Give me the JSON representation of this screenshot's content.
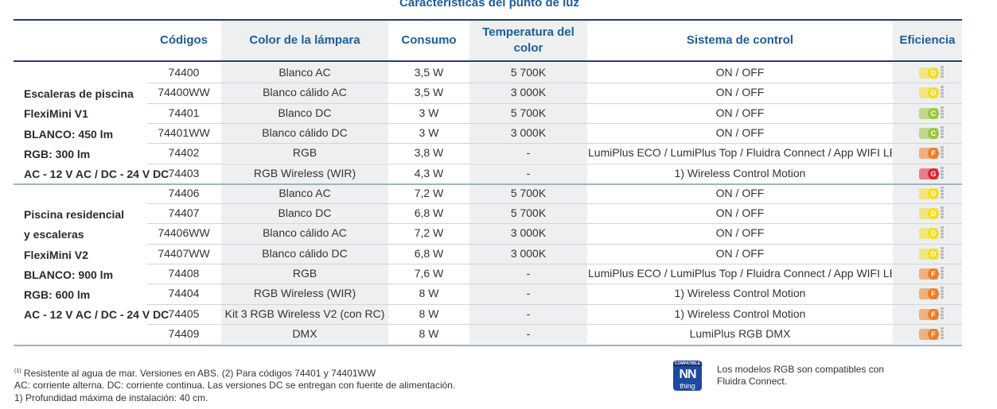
{
  "title": "Características del punto de luz",
  "headers": {
    "codes": "Códigos",
    "color": "Color de la lámpara",
    "consumption": "Consumo",
    "temperature": "Temperatura del color",
    "control": "Sistema de control",
    "efficiency": "Eficiencia"
  },
  "groups": [
    {
      "lines": [
        "Escaleras de piscina",
        "FlexiMini V1",
        "BLANCO: 450 lm",
        "RGB: 300 lm",
        "AC - 12 V AC / DC - 24 V DC"
      ]
    },
    {
      "lines": [
        "Piscina residencial",
        "y escaleras",
        "FlexiMini V2",
        "BLANCO: 900 lm",
        "RGB: 600 lm",
        "AC - 12 V AC / DC - 24 V DC"
      ]
    }
  ],
  "rows": [
    {
      "code": "74400",
      "color": "Blanco AC",
      "consumption": "3,5 W",
      "temperature": "5 700K",
      "control": "ON / OFF",
      "efficiency": "D"
    },
    {
      "code": "74400WW",
      "color": "Blanco cálido AC",
      "consumption": "3,5 W",
      "temperature": "3 000K",
      "control": "ON / OFF",
      "efficiency": "D"
    },
    {
      "code": "74401",
      "color": "Blanco DC",
      "consumption": "3 W",
      "temperature": "5 700K",
      "control": "ON / OFF",
      "efficiency": "C"
    },
    {
      "code": "74401WW",
      "color": "Blanco cálido DC",
      "consumption": "3 W",
      "temperature": "3 000K",
      "control": "ON / OFF",
      "efficiency": "C"
    },
    {
      "code": "74402",
      "color": "RGB",
      "consumption": "3,8 W",
      "temperature": "-",
      "control": "LumiPlus ECO / LumiPlus Top / Fluidra Connect / App WIFI LED",
      "efficiency": "F"
    },
    {
      "code": "74403",
      "color": "RGB Wireless (WIR)",
      "consumption": "4,3 W",
      "temperature": "-",
      "control": "1) Wireless Control Motion",
      "efficiency": "G"
    },
    {
      "code": "74406",
      "color": "Blanco AC",
      "consumption": "7,2 W",
      "temperature": "5 700K",
      "control": "ON / OFF",
      "efficiency": "D"
    },
    {
      "code": "74407",
      "color": "Blanco DC",
      "consumption": "6,8 W",
      "temperature": "5 700K",
      "control": "ON / OFF",
      "efficiency": "D"
    },
    {
      "code": "74406WW",
      "color": "Blanco cálido AC",
      "consumption": "7,2 W",
      "temperature": "3 000K",
      "control": "ON / OFF",
      "efficiency": "D"
    },
    {
      "code": "74407WW",
      "color": "Blanco cálido DC",
      "consumption": "6,8 W",
      "temperature": "3 000K",
      "control": "ON / OFF",
      "efficiency": "D"
    },
    {
      "code": "74408",
      "color": "RGB",
      "consumption": "7,6 W",
      "temperature": "-",
      "control": "LumiPlus ECO / LumiPlus Top / Fluidra Connect / App WIFI LED",
      "efficiency": "F"
    },
    {
      "code": "74404",
      "color": "RGB Wireless (WIR)",
      "consumption": "8 W",
      "temperature": "-",
      "control": "1) Wireless Control Motion",
      "efficiency": "F"
    },
    {
      "code": "74405",
      "color": "Kit 3 RGB Wireless V2 (con RC)",
      "consumption": "8 W",
      "temperature": "-",
      "control": "1) Wireless Control Motion",
      "efficiency": "F"
    },
    {
      "code": "74409",
      "color": "DMX",
      "consumption": "8 W",
      "temperature": "-",
      "control": "LumiPlus RGB DMX",
      "efficiency": "F"
    }
  ],
  "efficiency_colors": {
    "C": "#9bc53d",
    "D": "#f5dd25",
    "F": "#ef7d22",
    "G": "#e2232f"
  },
  "footnotes": {
    "line1_sup": "(1)",
    "line1": "Resistente al agua de mar. Versiones en ABS. (2) Para códigos 74401 y 74401WW",
    "line2": "AC: corriente alterna. DC: corriente continua. Las versiones DC se entregan con fuente de alimentación.",
    "line3": "1) Profundidad máxima de instalación: 40 cm."
  },
  "compatible": {
    "badge_top": "COMPATIBLE",
    "badge_logo": "NN",
    "badge_sub": "thing",
    "text_line1": "Los modelos RGB son compatibles con",
    "text_line2": "Fluidra Connect."
  }
}
